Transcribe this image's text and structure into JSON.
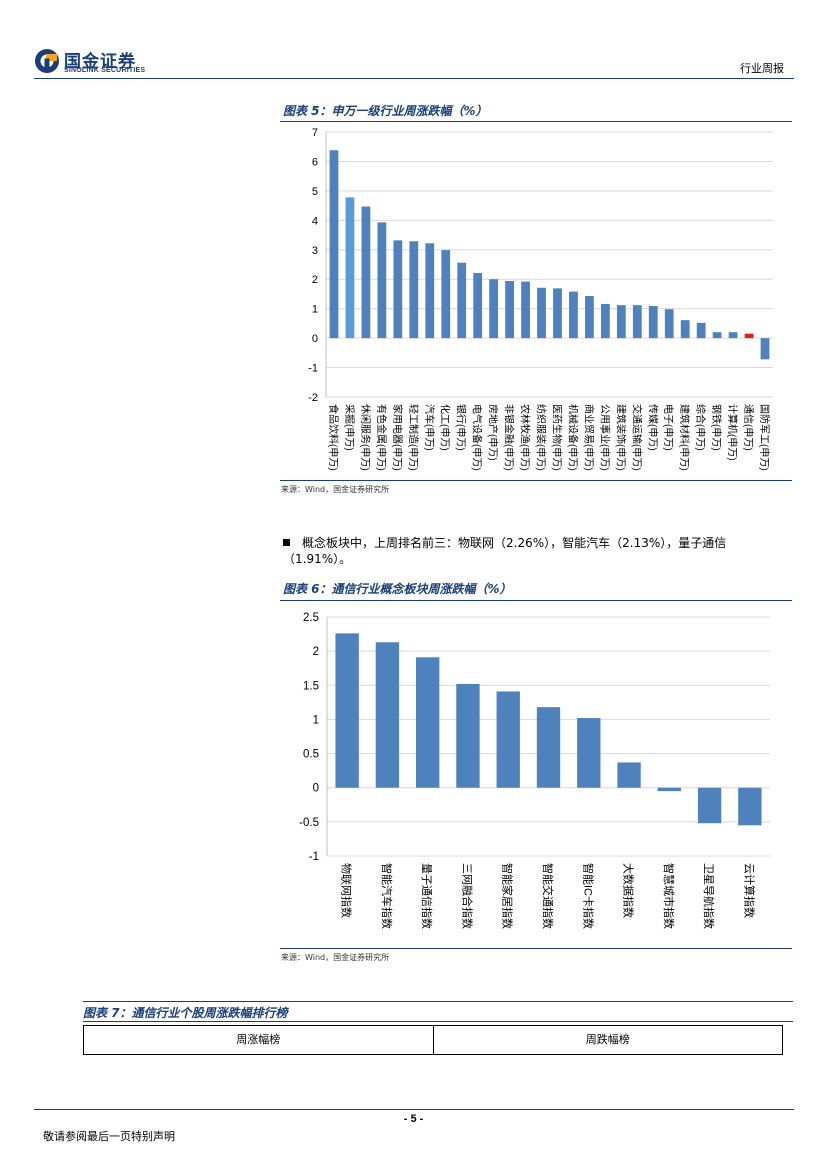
{
  "header": {
    "logo_cn": "国金证券",
    "logo_en": "SINOLINK SECURITIES",
    "report_type": "行业周报"
  },
  "figure5": {
    "title": "图表 5：申万一级行业周涨跌幅（%）",
    "source": "来源：Wind，国金证券研究所"
  },
  "bullet_text": "概念板块中，上周排名前三：物联网（2.26%），智能汽车（2.13%），量子通信（1.91%）。",
  "figure6": {
    "title": "图表 6：通信行业概念板块周涨跌幅（%）",
    "source": "来源：Wind，国金证券研究所"
  },
  "figure7": {
    "title": "图表 7：通信行业个股周涨跌幅排行榜",
    "col_up": "周涨幅榜",
    "col_down": "周跌幅榜"
  },
  "footer": {
    "page": "- 5 -",
    "disclaimer": "敬请参阅最后一页特别声明"
  },
  "colors": {
    "brand": "#1a3e7a",
    "bar": "#4f81bd",
    "bar_light": "#5b9bd5",
    "bar_highlight": "#e0201b"
  },
  "chart_data": [
    {
      "id": "fig5",
      "type": "bar",
      "ylim": [
        -2,
        7
      ],
      "yticks": [
        7,
        6,
        5,
        4,
        3,
        2,
        1,
        0,
        -1,
        -2
      ],
      "categories": [
        "食品饮料(申万)",
        "采掘(申万)",
        "休闲服务(申万)",
        "有色金属(申万)",
        "家用电器(申万)",
        "轻工制造(申万)",
        "汽车(申万)",
        "化工(申万)",
        "银行(申万)",
        "电气设备(申万)",
        "房地产(申万)",
        "非银金融(申万)",
        "农林牧渔(申万)",
        "纺织服装(申万)",
        "医药生物(申万)",
        "机械设备(申万)",
        "商业贸易(申万)",
        "公用事业(申万)",
        "建筑装饰(申万)",
        "交通运输(申万)",
        "传媒(申万)",
        "电子(申万)",
        "建筑材料(申万)",
        "综合(申万)",
        "钢铁(申万)",
        "计算机(申万)",
        "通信(申万)",
        "国防军工(申万)"
      ],
      "values": [
        6.38,
        4.78,
        4.47,
        3.93,
        3.32,
        3.29,
        3.22,
        2.99,
        2.56,
        2.21,
        2.0,
        1.94,
        1.92,
        1.71,
        1.69,
        1.58,
        1.43,
        1.16,
        1.12,
        1.12,
        1.09,
        0.98,
        0.61,
        0.52,
        0.2,
        0.2,
        0.15,
        -0.72
      ],
      "highlight_index": 26,
      "light_index": 1
    },
    {
      "id": "fig6",
      "type": "bar",
      "ylim": [
        -1,
        2.5
      ],
      "yticks": [
        "2.5",
        "2",
        "1.5",
        "1",
        "0.5",
        "0",
        "-0.5",
        "-1"
      ],
      "categories": [
        "物联网指数",
        "智能汽车指数",
        "量子通信指数",
        "三网融合指数",
        "智能家居指数",
        "智能交通指数",
        "智能IC卡指数",
        "大数据指数",
        "智慧城市指数",
        "卫星导航指数",
        "云计算指数"
      ],
      "values": [
        2.26,
        2.13,
        1.91,
        1.52,
        1.41,
        1.18,
        1.02,
        0.37,
        -0.05,
        -0.52,
        -0.55
      ]
    }
  ]
}
